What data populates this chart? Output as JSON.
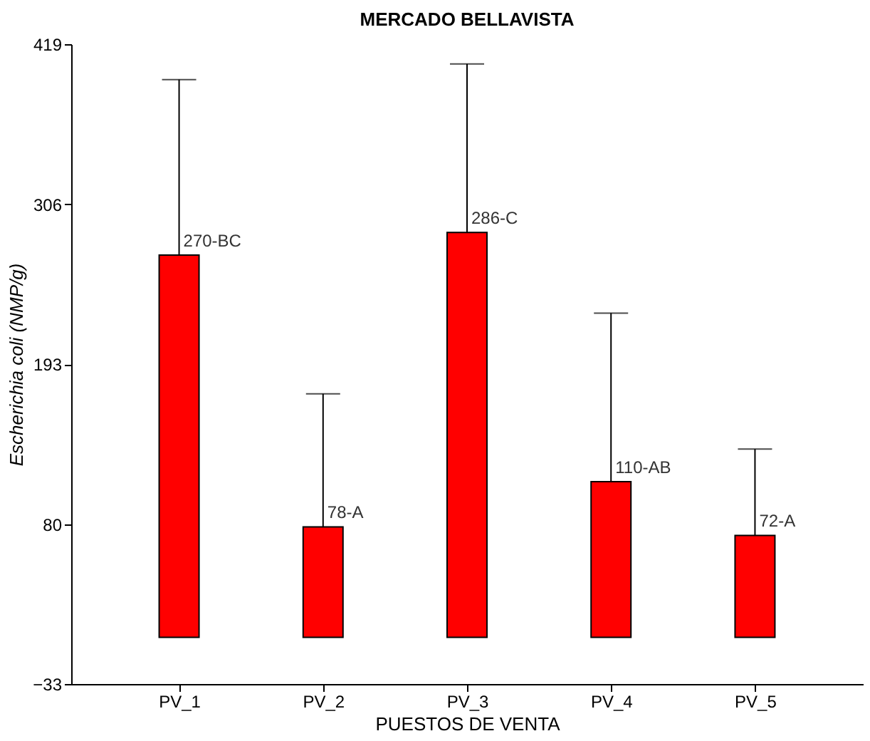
{
  "chart_data": {
    "type": "bar",
    "title": "MERCADO BELLAVISTA",
    "xlabel": "PUESTOS DE VENTA",
    "ylabel": "Escherichia coli (NMP/g)",
    "categories": [
      "PV_1",
      "PV_2",
      "PV_3",
      "PV_4",
      "PV_5"
    ],
    "values": [
      270,
      78,
      286,
      110,
      72
    ],
    "errors": [
      [
        270,
        394
      ],
      [
        78,
        172
      ],
      [
        286,
        405
      ],
      [
        110,
        229
      ],
      [
        72,
        133
      ]
    ],
    "value_labels": [
      "270-BC",
      "78-A",
      "286-C",
      "110-AB",
      "72-A"
    ],
    "color": "#ff0000",
    "ylim": [
      -33,
      419
    ],
    "yticks": [
      -33,
      80,
      193,
      306,
      419
    ],
    "grid": false
  }
}
